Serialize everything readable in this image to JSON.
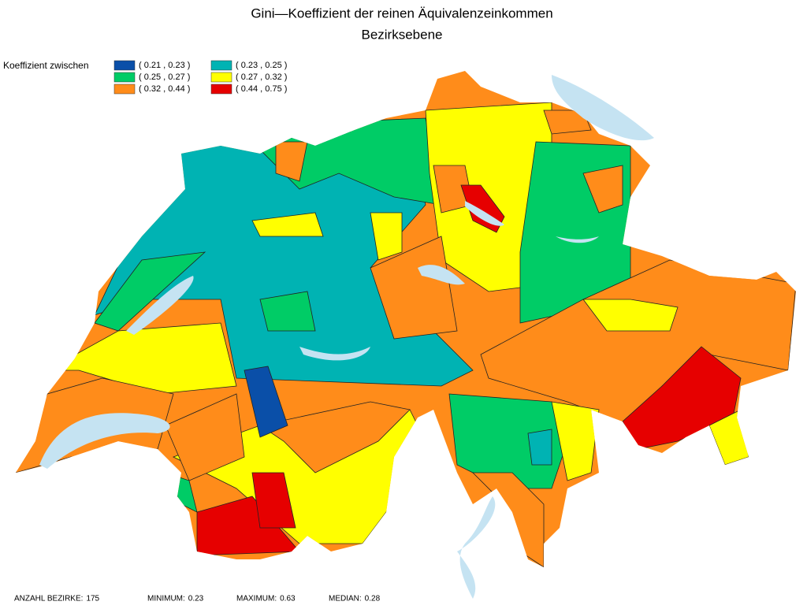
{
  "title": "Gini—Koeffizient der reinen Äquivalenzeinkommen",
  "subtitle": "Bezirksebene",
  "legend": {
    "label": "Koeffizient zwischen",
    "items": [
      {
        "text": "( 0.21 , 0.23 )",
        "color": "#0a4fa8"
      },
      {
        "text": "( 0.23 , 0.25 )",
        "color": "#00b3b3"
      },
      {
        "text": "( 0.25 , 0.27 )",
        "color": "#00cc66"
      },
      {
        "text": "( 0.27 , 0.32 )",
        "color": "#ffff00"
      },
      {
        "text": "( 0.32 , 0.44 )",
        "color": "#ff8c1a"
      },
      {
        "text": "( 0.44 , 0.75 )",
        "color": "#e60000"
      }
    ]
  },
  "footer": [
    {
      "label": "ANZAHL BEZIRKE:",
      "value": 175
    },
    {
      "label": "MINIMUM:",
      "value": 0.23
    },
    {
      "label": "MAXIMUM:",
      "value": 0.63
    },
    {
      "label": "MEDIAN:",
      "value": 0.28
    }
  ]
}
